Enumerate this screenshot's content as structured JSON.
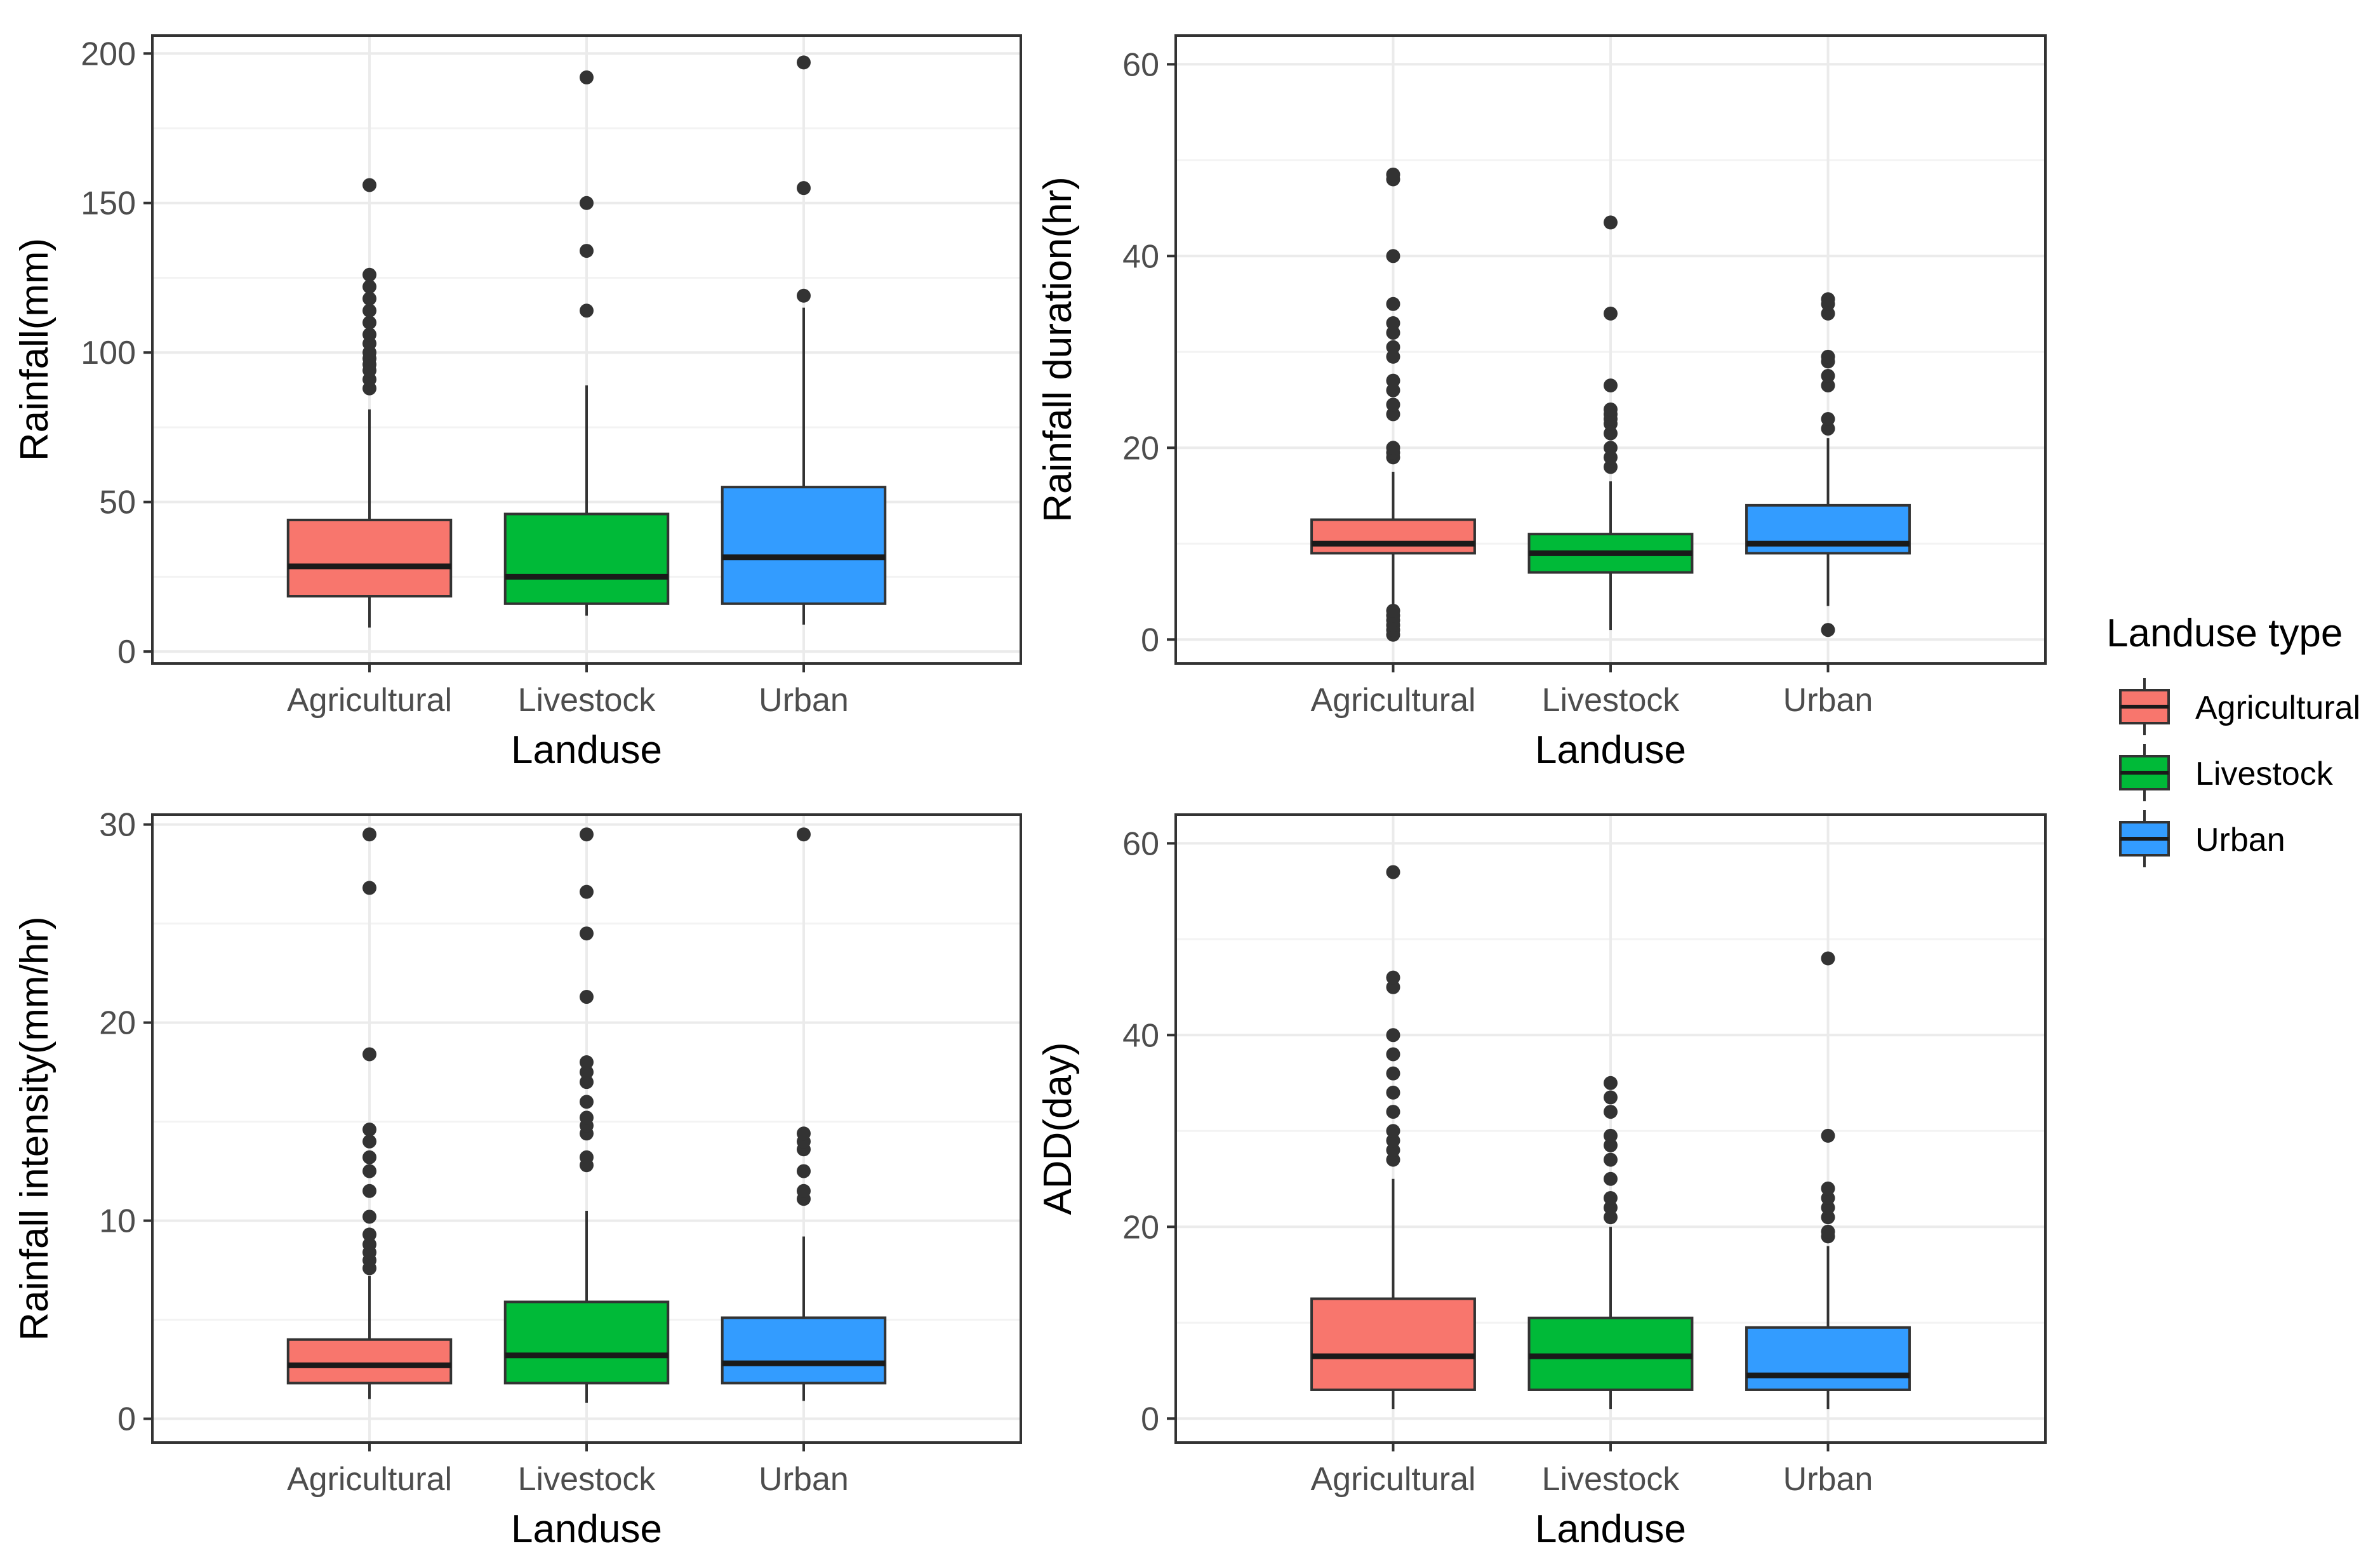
{
  "colors": {
    "Agricultural": "#f8766d",
    "Livestock": "#00ba38",
    "Urban": "#339cff",
    "outlier": "#333333",
    "grid_major": "#ebebeb",
    "grid_minor": "#f3f3f3",
    "panel_border": "#333333"
  },
  "legend": {
    "title": "Landuse type",
    "items": [
      "Agricultural",
      "Livestock",
      "Urban"
    ]
  },
  "chart_data": [
    {
      "type": "boxplot",
      "panel": "top-left",
      "xlabel": "Landuse",
      "ylabel": "Rainfall(mm)",
      "categories": [
        "Agricultural",
        "Livestock",
        "Urban"
      ],
      "ylim": [
        -4,
        206
      ],
      "yticks": [
        0,
        50,
        100,
        150,
        200
      ],
      "minor_ticks": [
        25,
        75,
        125,
        175
      ],
      "boxes": [
        {
          "category": "Agricultural",
          "min": 8,
          "q1": 18.5,
          "median": 28.5,
          "q3": 44,
          "max": 81,
          "outliers": [
            88,
            91,
            94,
            96,
            98,
            100,
            103,
            106,
            110,
            114,
            118,
            122,
            126,
            156
          ]
        },
        {
          "category": "Livestock",
          "min": 12,
          "q1": 16,
          "median": 25,
          "q3": 46,
          "max": 89,
          "outliers": [
            114,
            134,
            150,
            192
          ]
        },
        {
          "category": "Urban",
          "min": 9,
          "q1": 16,
          "median": 31.5,
          "q3": 55,
          "max": 115,
          "outliers": [
            119,
            155,
            197
          ]
        }
      ]
    },
    {
      "type": "boxplot",
      "panel": "top-right",
      "xlabel": "Landuse",
      "ylabel": "Rainfall duration(hr)",
      "categories": [
        "Agricultural",
        "Livestock",
        "Urban"
      ],
      "ylim": [
        -2.5,
        63
      ],
      "yticks": [
        0,
        20,
        40,
        60
      ],
      "minor_ticks": [
        10,
        30,
        50
      ],
      "boxes": [
        {
          "category": "Agricultural",
          "min": 3.5,
          "q1": 9,
          "median": 10,
          "q3": 12.5,
          "max": 17.5,
          "outliers": [
            0.5,
            1,
            1.5,
            2,
            2.5,
            3,
            19,
            19.5,
            20,
            23.5,
            24.5,
            26,
            27,
            29.5,
            30.5,
            32,
            33,
            35,
            40,
            48,
            48.5
          ]
        },
        {
          "category": "Livestock",
          "min": 1,
          "q1": 7,
          "median": 9,
          "q3": 11,
          "max": 16.5,
          "outliers": [
            18,
            19,
            20,
            21.5,
            22.5,
            23,
            23.5,
            24,
            26.5,
            34,
            43.5
          ]
        },
        {
          "category": "Urban",
          "min": 3.5,
          "q1": 9,
          "median": 10,
          "q3": 14,
          "max": 21,
          "outliers": [
            1,
            22,
            23,
            26.5,
            27.5,
            29,
            29.5,
            34,
            35,
            35.5
          ]
        }
      ]
    },
    {
      "type": "boxplot",
      "panel": "bottom-left",
      "xlabel": "Landuse",
      "ylabel": "Rainfall intensity(mm/hr)",
      "categories": [
        "Agricultural",
        "Livestock",
        "Urban"
      ],
      "ylim": [
        -1.2,
        30.5
      ],
      "yticks": [
        0,
        10,
        20,
        30
      ],
      "minor_ticks": [
        5,
        15,
        25
      ],
      "boxes": [
        {
          "category": "Agricultural",
          "min": 1,
          "q1": 1.8,
          "median": 2.7,
          "q3": 4,
          "max": 7.2,
          "outliers": [
            7.6,
            8,
            8.4,
            8.8,
            9.3,
            10.2,
            11.5,
            12.5,
            13.2,
            14,
            14.6,
            18.4,
            26.8,
            29.5
          ]
        },
        {
          "category": "Livestock",
          "min": 0.8,
          "q1": 1.8,
          "median": 3.2,
          "q3": 5.9,
          "max": 10.5,
          "outliers": [
            12.8,
            13.2,
            14.4,
            14.8,
            15.2,
            16,
            17,
            17.5,
            18,
            21.3,
            24.5,
            26.6,
            29.5
          ]
        },
        {
          "category": "Urban",
          "min": 0.9,
          "q1": 1.8,
          "median": 2.8,
          "q3": 5.1,
          "max": 9.2,
          "outliers": [
            11.1,
            11.5,
            12.5,
            13.6,
            14,
            14.4,
            29.5
          ]
        }
      ]
    },
    {
      "type": "boxplot",
      "panel": "bottom-right",
      "xlabel": "Landuse",
      "ylabel": "ADD(day)",
      "categories": [
        "Agricultural",
        "Livestock",
        "Urban"
      ],
      "ylim": [
        -2.5,
        63
      ],
      "yticks": [
        0,
        20,
        40,
        60
      ],
      "minor_ticks": [
        10,
        30,
        50
      ],
      "boxes": [
        {
          "category": "Agricultural",
          "min": 1,
          "q1": 3,
          "median": 6.5,
          "q3": 12.5,
          "max": 25,
          "outliers": [
            27,
            28,
            29,
            30,
            32,
            34,
            36,
            38,
            40,
            45,
            46,
            57
          ]
        },
        {
          "category": "Livestock",
          "min": 1,
          "q1": 3,
          "median": 6.5,
          "q3": 10.5,
          "max": 20,
          "outliers": [
            21,
            22,
            23,
            25,
            27,
            28.5,
            29.5,
            32,
            33.5,
            35
          ]
        },
        {
          "category": "Urban",
          "min": 1,
          "q1": 3,
          "median": 4.5,
          "q3": 9.5,
          "max": 18,
          "outliers": [
            19,
            19.5,
            21,
            22,
            23,
            24,
            29.5,
            48
          ]
        }
      ]
    }
  ]
}
